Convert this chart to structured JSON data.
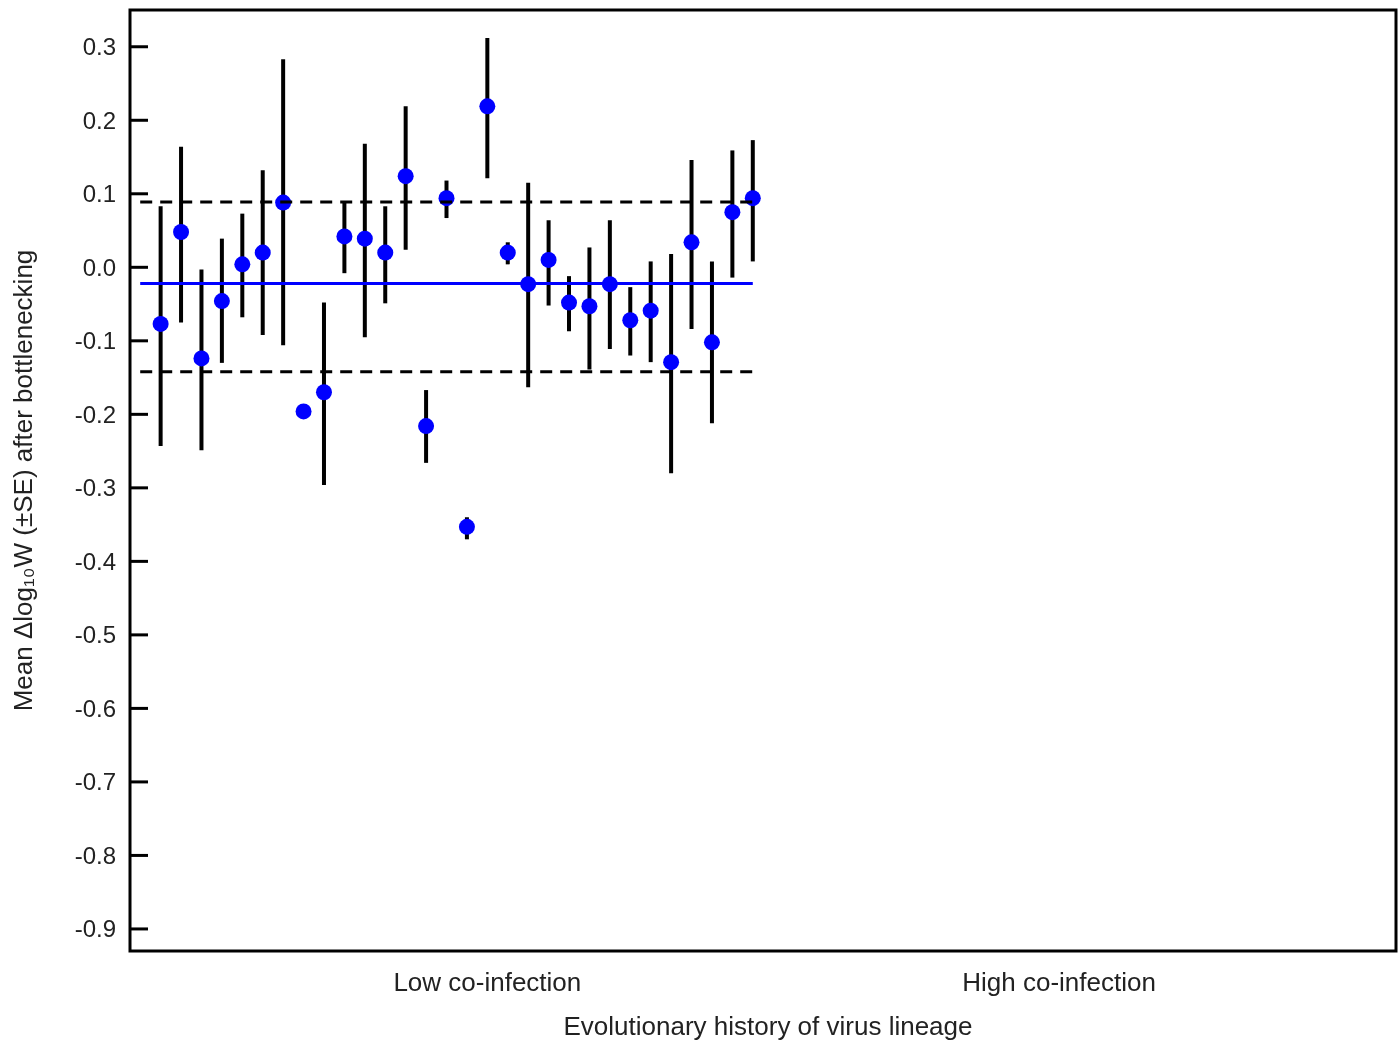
{
  "chart_data": {
    "type": "scatter",
    "xlabel": "Evolutionary history of virus lineage",
    "ylabel": "Mean Δlog₁₀W (±SE) after bottlenecking",
    "categories": [
      null,
      null,
      null,
      null,
      null,
      null,
      null,
      null,
      null,
      null,
      null,
      null,
      null,
      null,
      null,
      null,
      null,
      "Low co-infection",
      null,
      null,
      null,
      null,
      null,
      null,
      null,
      null,
      null,
      null,
      null,
      null,
      null,
      null,
      null,
      null,
      null,
      null,
      null,
      null,
      null,
      null,
      null,
      null,
      null,
      null,
      null,
      "High co-infection",
      null,
      null,
      null,
      null,
      null,
      null,
      null,
      null,
      null,
      null,
      null,
      null,
      null,
      null,
      null,
      null
    ],
    "ylim": [
      -0.93,
      0.35
    ],
    "yticks": [
      0.3,
      0.2,
      0.1,
      {
        "value": 0,
        "label": "0.0"
      },
      -0.1,
      -0.2,
      -0.3,
      -0.4,
      -0.5,
      -0.6,
      -0.7,
      -0.8,
      -0.9
    ],
    "grid": false,
    "series": [
      {
        "color": "#0000ff",
        "marker": "circle",
        "values": [
          null,
          -0.077,
          0.048,
          -0.124,
          -0.046,
          0.004,
          0.02,
          0.088,
          -0.196,
          -0.17,
          0.042,
          0.039,
          0.02,
          0.124,
          -0.216,
          0.094,
          -0.353,
          0.219,
          0.02,
          -0.023,
          0.01,
          -0.048,
          -0.053,
          -0.023,
          -0.072,
          -0.059,
          -0.129,
          0.034,
          -0.102,
          0.075,
          0.094,
          null,
          null,
          null,
          null,
          null,
          null,
          null,
          null,
          null,
          null,
          null,
          null,
          null,
          null,
          null,
          null,
          null,
          null,
          null,
          null,
          null,
          null,
          null,
          null,
          null,
          null,
          null,
          null,
          null,
          null,
          null
        ],
        "errors": [
          null,
          [
            -0.243,
            0.083
          ],
          [
            -0.075,
            0.164
          ],
          [
            -0.249,
            -0.003
          ],
          [
            -0.13,
            0.039
          ],
          [
            -0.068,
            0.073
          ],
          [
            -0.092,
            0.132
          ],
          [
            -0.106,
            0.283
          ],
          null,
          [
            -0.296,
            -0.048
          ],
          [
            -0.008,
            0.088
          ],
          [
            -0.095,
            0.168
          ],
          [
            -0.049,
            0.083
          ],
          [
            0.024,
            0.219
          ],
          [
            -0.266,
            -0.167
          ],
          [
            0.067,
            0.118
          ],
          [
            -0.37,
            -0.34
          ],
          [
            0.121,
            0.312
          ],
          [
            0.004,
            0.034
          ],
          [
            -0.163,
            0.115
          ],
          [
            -0.052,
            0.064
          ],
          [
            -0.087,
            -0.012
          ],
          [
            -0.139,
            0.027
          ],
          [
            -0.111,
            0.064
          ],
          [
            -0.12,
            -0.027
          ],
          [
            -0.129,
            0.008
          ],
          [
            -0.28,
            0.018
          ],
          [
            -0.084,
            0.146
          ],
          [
            -0.212,
            0.008
          ],
          [
            -0.014,
            0.159
          ],
          [
            0.008,
            0.173
          ],
          null,
          null,
          null,
          null,
          null,
          null,
          null,
          null,
          null,
          null,
          null,
          null,
          null,
          null,
          null,
          null,
          null,
          null,
          null,
          null,
          null,
          null,
          null,
          null,
          null,
          null,
          null,
          null,
          null,
          null,
          null
        ]
      },
      {
        "type": "line",
        "color": "#0000ff",
        "line_style": "solid",
        "values": [
          -0.022,
          -0.022,
          -0.022,
          -0.022,
          -0.022,
          -0.022,
          -0.022,
          -0.022,
          -0.022,
          -0.022,
          -0.022,
          -0.022,
          -0.022,
          -0.022,
          -0.022,
          -0.022,
          -0.022,
          -0.022,
          -0.022,
          -0.022,
          -0.022,
          -0.022,
          -0.022,
          -0.022,
          -0.022,
          -0.022,
          -0.022,
          -0.022,
          -0.022,
          -0.022,
          -0.022,
          null,
          null,
          null,
          null,
          null,
          null,
          null,
          null,
          null,
          null,
          null,
          null,
          null,
          null,
          null,
          null,
          null,
          null,
          null,
          null,
          null,
          null,
          null,
          null,
          null,
          null,
          null,
          null,
          null,
          null,
          null
        ]
      },
      {
        "type": "line",
        "color": "#000000",
        "line_style": "dashed",
        "values": [
          0.089,
          0.089,
          0.089,
          0.089,
          0.089,
          0.089,
          0.089,
          0.089,
          0.089,
          0.089,
          0.089,
          0.089,
          0.089,
          0.089,
          0.089,
          0.089,
          0.089,
          0.089,
          0.089,
          0.089,
          0.089,
          0.089,
          0.089,
          0.089,
          0.089,
          0.089,
          0.089,
          0.089,
          0.089,
          0.089,
          0.089,
          null,
          null,
          null,
          null,
          null,
          null,
          null,
          null,
          null,
          null,
          null,
          null,
          null,
          null,
          null,
          null,
          null,
          null,
          null,
          null,
          null,
          null,
          null,
          null,
          null,
          null,
          null,
          null,
          null,
          null,
          null
        ]
      },
      {
        "type": "line",
        "color": "#000000",
        "line_style": "dashed",
        "values": [
          -0.142,
          -0.142,
          -0.142,
          -0.142,
          -0.142,
          -0.142,
          -0.142,
          -0.142,
          -0.142,
          -0.142,
          -0.142,
          -0.142,
          -0.142,
          -0.142,
          -0.142,
          -0.142,
          -0.142,
          -0.142,
          -0.142,
          -0.142,
          -0.142,
          -0.142,
          -0.142,
          -0.142,
          -0.142,
          -0.142,
          -0.142,
          -0.142,
          -0.142,
          -0.142,
          -0.142,
          null,
          null,
          null,
          null,
          null,
          null,
          null,
          null,
          null,
          null,
          null,
          null,
          null,
          null,
          null,
          null,
          null,
          null,
          null,
          null,
          null,
          null,
          null,
          null,
          null,
          null,
          null,
          null,
          null,
          null,
          null
        ]
      }
    ]
  }
}
